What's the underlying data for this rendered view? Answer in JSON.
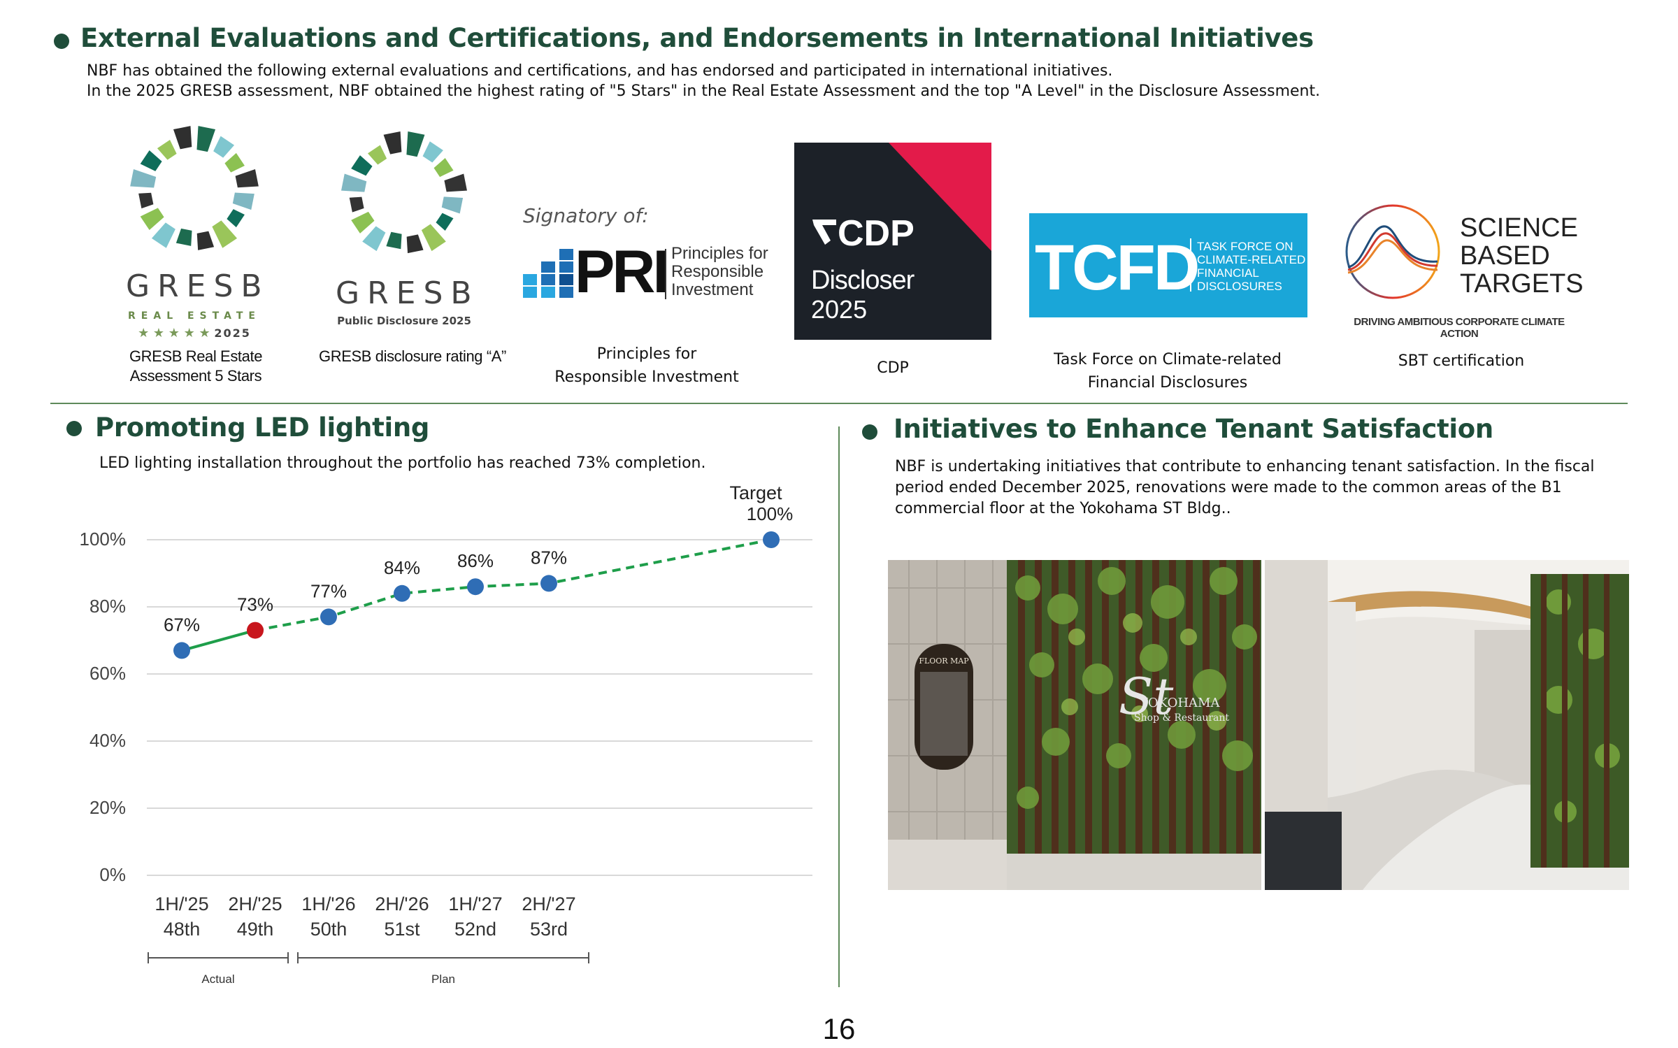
{
  "section1": {
    "title": "External Evaluations and Certifications, and Endorsements in International Initiatives",
    "line1": "NBF has obtained the following external evaluations and certifications, and has endorsed and participated in international initiatives.",
    "line2": "In the 2025 GRESB assessment, NBF obtained the highest rating of \"5 Stars\" in the Real Estate Assessment and the top \"A Level\" in the Disclosure Assessment."
  },
  "logos": {
    "gresb1": {
      "word": "GRESB",
      "sub": "REAL ESTATE",
      "stars": "★ ★ ★ ★ ★",
      "year": "2025",
      "caption1": "GRESB Real Estate",
      "caption2": "Assessment 5 Stars"
    },
    "gresb2": {
      "word": "GRESB",
      "sub": "Public Disclosure 2025",
      "caption": "GRESB disclosure rating “A”"
    },
    "pri": {
      "signatory": "Signatory of:",
      "word": "PRI",
      "line1": "Principles for",
      "line2": "Responsible",
      "line3": "Investment",
      "caption1": "Principles for",
      "caption2": "Responsible Investment"
    },
    "cdp": {
      "word": "CDP",
      "line1": "Discloser",
      "line2": "2025",
      "caption": "CDP"
    },
    "tcfd": {
      "word": "TCFD",
      "line1": "TASK FORCE ON",
      "line2": "CLIMATE-RELATED",
      "line3": "FINANCIAL",
      "line4": "DISCLOSURES",
      "caption1": "Task Force on Climate-related",
      "caption2": "Financial Disclosures"
    },
    "sbt": {
      "line1": "SCIENCE",
      "line2": "BASED",
      "line3": "TARGETS",
      "tagline": "DRIVING AMBITIOUS CORPORATE CLIMATE ACTION",
      "caption": "SBT certification"
    }
  },
  "section2": {
    "title": "Promoting LED lighting",
    "desc": "LED lighting installation throughout the portfolio has reached 73% completion."
  },
  "section3": {
    "title": "Initiatives to Enhance Tenant Satisfaction",
    "line1": "NBF is undertaking initiatives that contribute to enhancing tenant satisfaction. In the fiscal",
    "line2": "period ended December 2025, renovations were made to the common areas of the B1",
    "line3": "commercial floor at the Yokohama ST Bldg..",
    "photo_sign1": "YOKOHAMA",
    "photo_sign2": "Shop & Restaurant",
    "floor_map": "FLOOR MAP"
  },
  "chart_data": {
    "type": "line",
    "categories": [
      "1H/'25",
      "2H/'25",
      "1H/'26",
      "2H/'26",
      "1H/'27",
      "2H/'27"
    ],
    "categories_sub": [
      "48th",
      "49th",
      "50th",
      "51st",
      "52nd",
      "53rd"
    ],
    "values": [
      67,
      73,
      77,
      84,
      86,
      87
    ],
    "value_labels": [
      "67%",
      "73%",
      "77%",
      "84%",
      "86%",
      "87%"
    ],
    "target": {
      "label": "Target",
      "value": 100,
      "value_label": "100%"
    },
    "highlight_index": 1,
    "yticks": [
      0,
      20,
      40,
      60,
      80,
      100
    ],
    "ytick_labels": [
      "0%",
      "20%",
      "40%",
      "60%",
      "80%",
      "100%"
    ],
    "ylim": [
      0,
      100
    ],
    "grid": true,
    "bracket_labels": [
      "Actual",
      "Plan"
    ],
    "colors": {
      "actual_line": "#1e9e4a",
      "plan_line": "#1e9e4a",
      "marker": "#2f6db5",
      "highlight": "#c8161d",
      "grid": "#d9d9d9"
    }
  },
  "page_number": "16"
}
